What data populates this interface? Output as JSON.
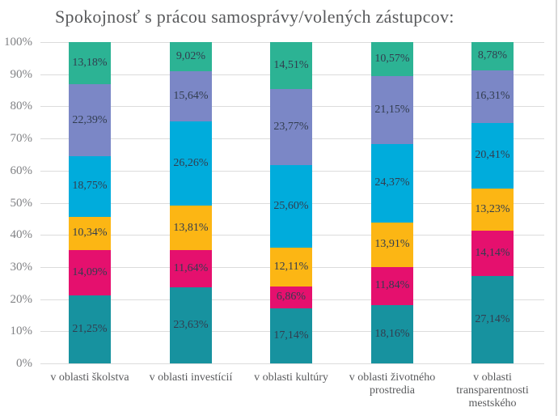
{
  "chart_data": {
    "type": "bar",
    "variant": "stacked-100-percent",
    "title": "Spokojnosť s prácou samosprávy/volených zástupcov:",
    "xlabel": "",
    "ylabel": "",
    "ylim": [
      0,
      100
    ],
    "grid": "horizontal",
    "legend": "none",
    "y_ticks": [
      "100%",
      "90%",
      "80%",
      "70%",
      "60%",
      "50%",
      "40%",
      "30%",
      "20%",
      "10%",
      "0%"
    ],
    "categories": [
      "v oblasti školstva",
      "v oblasti investícií",
      "v oblasti kultúry",
      "v oblasti životného prostredia",
      "v oblasti transparentnosti mestského"
    ],
    "category_lines": [
      [
        "v oblasti školstva"
      ],
      [
        "v oblasti investícií"
      ],
      [
        "v oblasti kultúry"
      ],
      [
        "v oblasti životného",
        "prostredia"
      ],
      [
        "v oblasti",
        "transparentnosti",
        "mestského"
      ]
    ],
    "stack_order_note": "series listed bottom-to-top of each bar",
    "series": [
      {
        "color": "#17929f",
        "values": [
          21.25,
          23.63,
          17.14,
          18.16,
          27.14
        ],
        "labels": [
          "21,25%",
          "23,63%",
          "17,14%",
          "18,16%",
          "27,14%"
        ]
      },
      {
        "color": "#e5106e",
        "values": [
          14.09,
          11.64,
          6.86,
          11.84,
          14.14
        ],
        "labels": [
          "14,09%",
          "11,64%",
          "6,86%",
          "11,84%",
          "14,14%"
        ]
      },
      {
        "color": "#fcb614",
        "values": [
          10.34,
          13.81,
          12.11,
          13.91,
          13.23
        ],
        "labels": [
          "10,34%",
          "13,81%",
          "12,11%",
          "13,91%",
          "13,23%"
        ]
      },
      {
        "color": "#00acdc",
        "values": [
          18.75,
          26.26,
          25.6,
          24.37,
          20.41
        ],
        "labels": [
          "18,75%",
          "26,26%",
          "25,60%",
          "24,37%",
          "20,41%"
        ]
      },
      {
        "color": "#7b87c6",
        "values": [
          22.39,
          15.64,
          23.77,
          21.15,
          16.31
        ],
        "labels": [
          "22,39%",
          "15,64%",
          "23,77%",
          "21,15%",
          "16,31%"
        ]
      },
      {
        "color": "#2cb394",
        "values": [
          13.18,
          9.02,
          14.51,
          10.57,
          8.78
        ],
        "labels": [
          "13,18%",
          "9,02%",
          "14,51%",
          "10,57%",
          "8,78%"
        ]
      }
    ],
    "colors": {
      "gridline": "#dcdcdc",
      "title_text": "#58595b",
      "axis_text": "#818285",
      "category_text": "#595a5c",
      "segment_label_text": "#323d4f",
      "background": "#ffffff"
    }
  }
}
